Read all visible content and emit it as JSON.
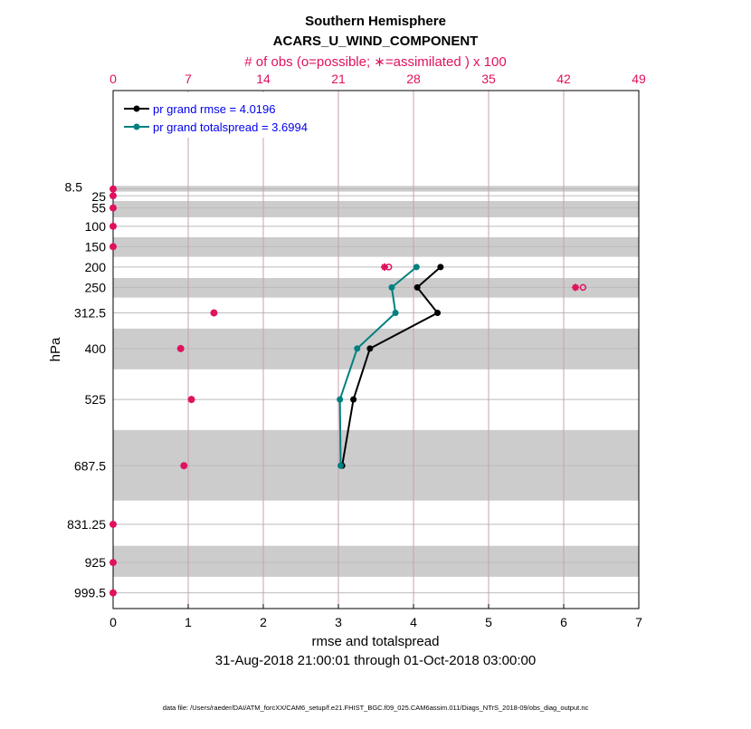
{
  "chart_data": {
    "type": "line",
    "title": "Southern Hemisphere",
    "subtitle": "ACARS_U_WIND_COMPONENT",
    "top_axis_label": "# of obs (o=possible; ∗=assimilated ) x 100",
    "top_ticks": [
      0,
      7,
      14,
      21,
      28,
      35,
      42,
      49
    ],
    "top_range": [
      0,
      49
    ],
    "xlabel": "rmse and totalspread",
    "x_ticks": [
      0,
      1,
      2,
      3,
      4,
      5,
      6,
      7
    ],
    "xlim": [
      0,
      7
    ],
    "ylabel": "hPa",
    "y_ticks": [
      "8.5",
      "25",
      "55",
      "100",
      "150",
      "200",
      "250",
      "312.5",
      "400",
      "525",
      "687.5",
      "831.25",
      "925",
      "999.5"
    ],
    "levels": [
      8.5,
      25,
      55,
      100,
      150,
      200,
      250,
      312.5,
      400,
      525,
      687.5,
      831.25,
      925,
      999.5
    ],
    "ylim": [
      1038,
      -233
    ],
    "date_range": "31-Aug-2018 21:00:01 through 01-Oct-2018 03:00:00",
    "footer": "data file: /Users/raeder/DAI/ATM_forcXX/CAM6_setup/f.e21.FHIST_BGC.f09_025.CAM6assim.011/Diags_NTrS_2018-09/obs_diag_output.nc",
    "series": [
      {
        "name": "pr grand rmse = 4.0196",
        "color": "#000000",
        "levels": [
          200,
          250,
          312.5,
          400,
          525,
          687.5
        ],
        "values": [
          4.36,
          4.05,
          4.32,
          3.42,
          3.2,
          3.05
        ]
      },
      {
        "name": "pr grand totalspread = 3.6994",
        "color": "#008080",
        "levels": [
          200,
          250,
          312.5,
          400,
          525,
          687.5
        ],
        "values": [
          4.04,
          3.71,
          3.76,
          3.25,
          3.02,
          3.03
        ]
      }
    ],
    "obs_possible": [
      0,
      0,
      0,
      0,
      0,
      25.7,
      43.8,
      9.4,
      6.3,
      7.3,
      6.6,
      0,
      0,
      0
    ],
    "obs_assimilated": [
      0,
      0,
      0,
      0,
      0,
      25.3,
      43.1,
      9.4,
      6.3,
      7.3,
      6.6,
      0,
      0,
      0
    ],
    "shaded_bands_hPa": [
      [
        1,
        15
      ],
      [
        38,
        78
      ],
      [
        127,
        175
      ],
      [
        227,
        275
      ],
      [
        351,
        451
      ],
      [
        600,
        773
      ],
      [
        884,
        960
      ]
    ],
    "obs_color": "#e0115f",
    "legend_position": "top-left"
  }
}
